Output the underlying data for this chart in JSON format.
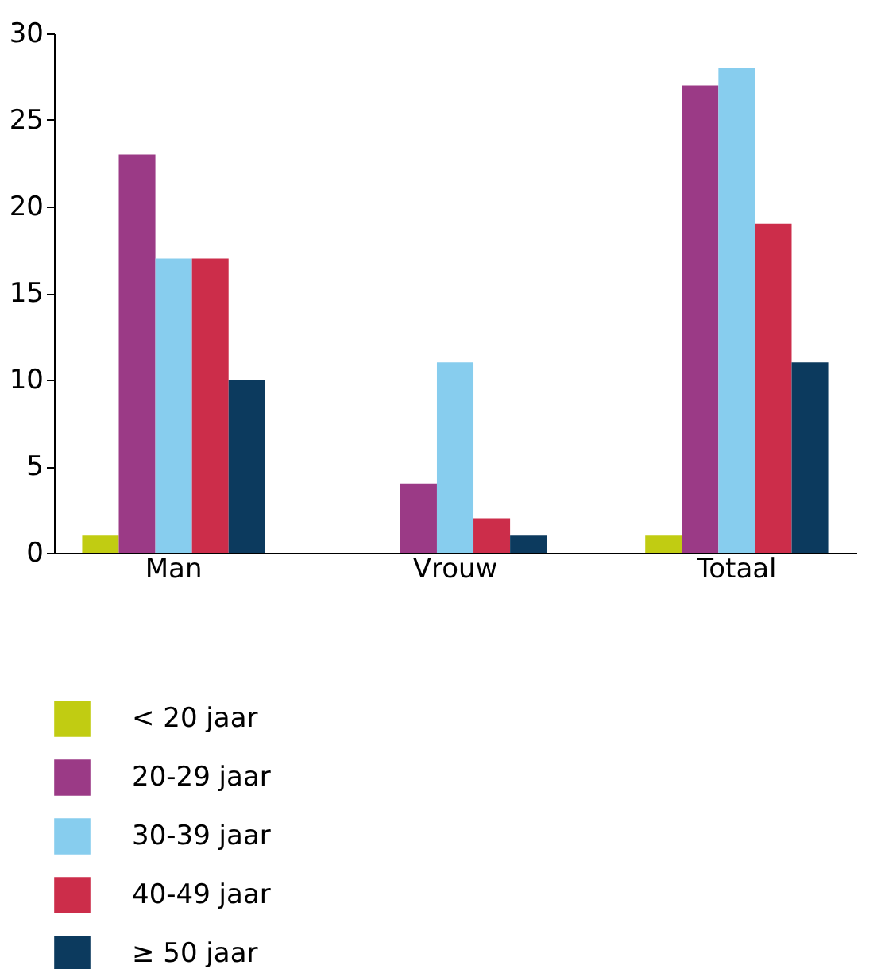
{
  "chart_data": {
    "type": "bar",
    "categories": [
      "Man",
      "Vrouw",
      "Totaal"
    ],
    "series": [
      {
        "name": "< 20 jaar",
        "color": "#c1cc12",
        "values": [
          1,
          0,
          1
        ]
      },
      {
        "name": "20-29 jaar",
        "color": "#9b3a86",
        "values": [
          23,
          4,
          27
        ]
      },
      {
        "name": "30-39 jaar",
        "color": "#87cdee",
        "values": [
          17,
          11,
          28
        ]
      },
      {
        "name": "40-49 jaar",
        "color": "#cc2d4a",
        "values": [
          17,
          2,
          19
        ]
      },
      {
        "name": "≥ 50 jaar",
        "color": "#0c3a5e",
        "values": [
          10,
          1,
          11
        ]
      }
    ],
    "ylim": [
      0,
      30
    ],
    "yticks": [
      0,
      5,
      10,
      15,
      20,
      25,
      30
    ],
    "grid": false,
    "legend": "bottom"
  }
}
